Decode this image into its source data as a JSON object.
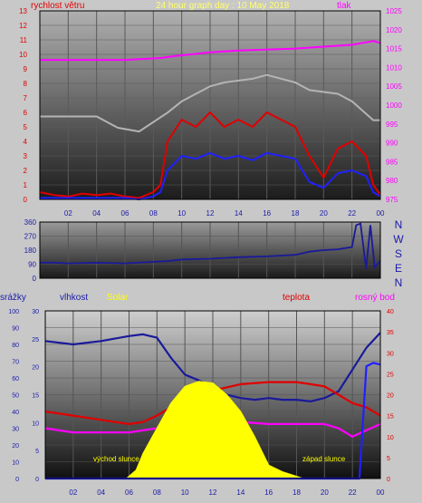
{
  "chart_data": [
    {
      "type": "line",
      "title": "24 hour graph day : 10 May 2018",
      "left_axis_label": "rychlost větru",
      "right_axis_label": "tlak",
      "x_ticks": [
        "02",
        "04",
        "06",
        "08",
        "10",
        "12",
        "14",
        "16",
        "18",
        "20",
        "22",
        "00"
      ],
      "left_ticks": [
        "0",
        "1",
        "2",
        "3",
        "4",
        "5",
        "6",
        "7",
        "8",
        "9",
        "10",
        "11",
        "12",
        "13"
      ],
      "right_ticks": [
        "975",
        "980",
        "985",
        "990",
        "995",
        "1000",
        "1005",
        "1010",
        "1015",
        "1020",
        "1025"
      ],
      "ylim_left": [
        0,
        13
      ],
      "ylim_right": [
        975,
        1025
      ],
      "series": [
        {
          "name": "tlak",
          "color": "#ff00ff",
          "axis": "right",
          "x": [
            0,
            6,
            8.5,
            9.5,
            12,
            14,
            18,
            20,
            22,
            23.5,
            24
          ],
          "y": [
            1012,
            1012,
            1012.5,
            1013,
            1014,
            1014.5,
            1015,
            1015.5,
            1016,
            1017,
            1016.5
          ]
        },
        {
          "color": "#b4b4b4",
          "axis": "right",
          "x": [
            0,
            2,
            4,
            5.5,
            7,
            9,
            10,
            12,
            13,
            15,
            16,
            18,
            19,
            21,
            22,
            23.5,
            24
          ],
          "y": [
            997,
            997,
            997,
            994,
            993,
            998,
            1001,
            1005,
            1006,
            1007,
            1008,
            1006,
            1004,
            1003,
            1001,
            996,
            996
          ]
        },
        {
          "color": "#e00000",
          "axis": "left",
          "x": [
            0,
            1,
            2,
            3,
            4,
            5,
            6,
            7,
            8,
            8.5,
            9,
            10,
            11,
            12,
            13,
            14,
            15,
            16,
            17,
            18,
            19,
            20,
            21,
            22,
            23,
            23.5,
            24
          ],
          "y": [
            0.5,
            0.3,
            0.2,
            0.4,
            0.3,
            0.4,
            0.2,
            0.1,
            0.5,
            1,
            4,
            5.5,
            5,
            6,
            5,
            5.5,
            5,
            6,
            5.5,
            5,
            3,
            1.5,
            3.5,
            4,
            3,
            1,
            0.3
          ]
        },
        {
          "color": "#2020ff",
          "axis": "left",
          "x": [
            0,
            1,
            2,
            3,
            4,
            5,
            6,
            7,
            8,
            8.5,
            9,
            10,
            11,
            12,
            13,
            14,
            15,
            16,
            17,
            18,
            19,
            20,
            21,
            22,
            23,
            23.5,
            24
          ],
          "y": [
            0.1,
            0.1,
            0.1,
            0.1,
            0.1,
            0.1,
            0.1,
            0,
            0.2,
            0.5,
            2,
            3,
            2.8,
            3.2,
            2.8,
            3,
            2.7,
            3.2,
            3,
            2.8,
            1.2,
            0.8,
            1.8,
            2,
            1.6,
            0.5,
            0.2
          ]
        }
      ]
    },
    {
      "type": "line",
      "left_ticks": [
        "0",
        "90",
        "180",
        "270",
        "360"
      ],
      "right_labels": [
        "N",
        "W",
        "S",
        "E",
        "N"
      ],
      "ylim": [
        0,
        360
      ],
      "series": [
        {
          "color": "#1a1a9a",
          "x": [
            0,
            1,
            2,
            4,
            6,
            8,
            9,
            10,
            12,
            14,
            16,
            18,
            19,
            20,
            21,
            22,
            22.3,
            22.6,
            23,
            23.3,
            23.6,
            24
          ],
          "y": [
            100,
            100,
            95,
            100,
            95,
            105,
            110,
            120,
            125,
            135,
            140,
            150,
            170,
            180,
            185,
            200,
            340,
            350,
            60,
            340,
            70,
            110
          ]
        }
      ]
    },
    {
      "type": "line",
      "labels": {
        "srazky": "srážky",
        "vlhkost": "vlhkost",
        "solar": "Solar",
        "teplota": "teplota",
        "rosny_bod": "rosný bod"
      },
      "annotations": {
        "sunrise": "východ slunce",
        "sunset": "západ slunce"
      },
      "srazky_ticks": [
        "0",
        "10",
        "20",
        "30",
        "40",
        "50",
        "60",
        "70",
        "80",
        "90",
        "100"
      ],
      "vlhkost_ticks": [
        "0",
        "5",
        "10",
        "15",
        "20",
        "25",
        "30"
      ],
      "teplota_ticks": [
        "0",
        "5",
        "10",
        "15",
        "20",
        "25",
        "30",
        "35",
        "40"
      ],
      "ylim_srazky": [
        0,
        100
      ],
      "ylim_vlhkost": [
        0,
        30
      ],
      "ylim_teplota": [
        0,
        40
      ],
      "series": [
        {
          "name": "vlhkost",
          "color": "#1a1a9a",
          "axis": "srazky",
          "x": [
            0,
            2,
            4,
            6,
            7,
            8,
            9,
            10,
            12,
            13,
            14,
            15,
            16,
            17,
            18,
            19,
            20,
            21,
            22,
            23,
            24
          ],
          "y": [
            82,
            80,
            82,
            85,
            86,
            84,
            72,
            62,
            55,
            50,
            48,
            47,
            48,
            47,
            47,
            46,
            48,
            52,
            65,
            78,
            87
          ]
        },
        {
          "name": "teplota",
          "color": "#e00000",
          "axis": "teplota",
          "x": [
            0,
            2,
            4,
            6,
            7,
            8,
            9,
            10,
            12,
            14,
            16,
            18,
            19,
            20,
            21,
            22,
            23,
            24
          ],
          "y": [
            16,
            15,
            14,
            13,
            13.5,
            15,
            17,
            19,
            21,
            22.5,
            23,
            23,
            22.5,
            22,
            20,
            18,
            17,
            15
          ]
        },
        {
          "name": "rosný bod",
          "color": "#ff00ff",
          "axis": "teplota",
          "x": [
            0,
            2,
            4,
            6,
            8,
            10,
            12,
            14,
            16,
            18,
            20,
            21,
            22,
            23,
            24
          ],
          "y": [
            12,
            11,
            11,
            11,
            12,
            13.5,
            13,
            13.5,
            13,
            13,
            13,
            12,
            10,
            11.5,
            13
          ]
        },
        {
          "name": "Solar",
          "color": "#ffff00",
          "axis": "srazky",
          "x": [
            5.8,
            6.5,
            7,
            8,
            9,
            10,
            11,
            12,
            13,
            14,
            15,
            16,
            17,
            18.5
          ],
          "y": [
            0,
            5,
            15,
            30,
            45,
            55,
            58,
            57,
            50,
            40,
            25,
            8,
            4,
            0
          ]
        },
        {
          "name": "srážky",
          "color": "#2020ff",
          "axis": "srazky",
          "x": [
            0,
            22.5,
            23,
            23.5,
            24
          ],
          "y": [
            0,
            0,
            67,
            69,
            68
          ]
        }
      ]
    }
  ]
}
